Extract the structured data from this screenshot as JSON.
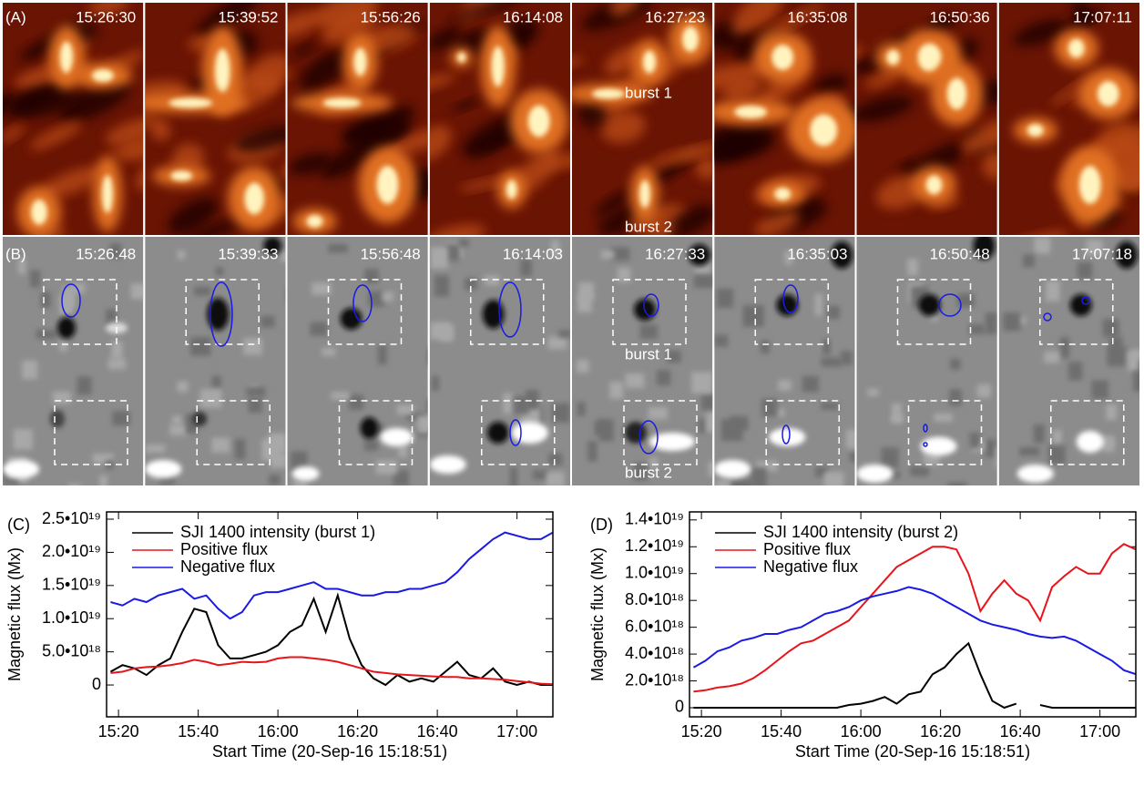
{
  "image_panels": {
    "a": {
      "label": "(A)",
      "times": [
        "15:26:30",
        "15:39:52",
        "15:56:26",
        "16:14:08",
        "16:27:23",
        "16:35:08",
        "16:50:36",
        "17:07:11"
      ],
      "burst_1": "burst 1",
      "burst_2": "burst 2"
    },
    "b": {
      "label": "(B)",
      "times": [
        "15:26:48",
        "15:39:33",
        "15:56:48",
        "16:14:03",
        "16:27:33",
        "16:35:03",
        "16:50:48",
        "17:07:18"
      ],
      "burst_1": "burst 1",
      "burst_2": "burst 2"
    }
  },
  "chart_data": [
    {
      "type": "line",
      "label": "(C)",
      "x_label": "Start Time (20-Sep-16 15:18:51)",
      "y_label": "Magnetic flux (Mx)",
      "x": [
        918,
        921,
        924,
        927,
        930,
        933,
        936,
        939,
        942,
        945,
        948,
        951,
        954,
        957,
        960,
        963,
        966,
        969,
        972,
        975,
        978,
        981,
        984,
        987,
        990,
        993,
        996,
        999,
        1002,
        1005,
        1008,
        1011,
        1014,
        1017,
        1020,
        1023,
        1026,
        1029
      ],
      "xlim": [
        917,
        1029
      ],
      "xticks": [
        {
          "value": 920,
          "label": "15:20"
        },
        {
          "value": 940,
          "label": "15:40"
        },
        {
          "value": 960,
          "label": "16:00"
        },
        {
          "value": 980,
          "label": "16:20"
        },
        {
          "value": 1000,
          "label": "16:40"
        },
        {
          "value": 1020,
          "label": "17:00"
        }
      ],
      "ylim": [
        -4.8e+18,
        2.61e+19
      ],
      "yticks": [
        0,
        {
          "value": 5e+18,
          "label": "5.0•10¹⁸"
        },
        {
          "value": 1e+19,
          "label": "1.0•10¹⁹"
        },
        {
          "value": 1.5e+19,
          "label": "1.5•10¹⁹"
        },
        {
          "value": 2e+19,
          "label": "2.0•10¹⁹"
        },
        {
          "value": 2.5e+19,
          "label": "2.5•10¹⁹"
        }
      ],
      "legend": "upper left",
      "series": [
        {
          "name": "SJI 1400 intensity (burst 1)",
          "color": "#000000",
          "values": [
            2e+18,
            3e+18,
            2.5e+18,
            1.5e+18,
            3e+18,
            4e+18,
            8e+18,
            1.15e+19,
            1.1e+19,
            6e+18,
            4e+18,
            4e+18,
            4.5e+18,
            5e+18,
            6e+18,
            8e+18,
            9e+18,
            1.3e+19,
            8e+18,
            1.35e+19,
            7e+18,
            3e+18,
            1e+18,
            0,
            1.5e+18,
            5e+17,
            1e+18,
            5e+17,
            2e+18,
            3.5e+18,
            1.5e+18,
            1e+18,
            2.5e+18,
            5e+17,
            0,
            5e+17,
            0,
            0
          ]
        },
        {
          "name": "Positive flux",
          "color": "#e8141c",
          "values": [
            1.8e+18,
            2e+18,
            2.5e+18,
            2.7e+18,
            2.8e+18,
            3e+18,
            3.3e+18,
            3.8e+18,
            3.5e+18,
            3e+18,
            3.2e+18,
            3.5e+18,
            3.4e+18,
            3.5e+18,
            4e+18,
            4.2e+18,
            4.2e+18,
            4e+18,
            3.8e+18,
            3.5e+18,
            3e+18,
            2.5e+18,
            2e+18,
            1.8e+18,
            1.6e+18,
            1.5e+18,
            1.4e+18,
            1.3e+18,
            1.2e+18,
            1.2e+18,
            1e+18,
            1e+18,
            9e+17,
            8e+17,
            6e+17,
            4e+17,
            2e+17,
            1e+17
          ]
        },
        {
          "name": "Negative flux",
          "color": "#1a1ae6",
          "values": [
            1.25e+19,
            1.2e+19,
            1.3e+19,
            1.25e+19,
            1.35e+19,
            1.4e+19,
            1.45e+19,
            1.3e+19,
            1.35e+19,
            1.15e+19,
            1e+19,
            1.1e+19,
            1.35e+19,
            1.4e+19,
            1.4e+19,
            1.45e+19,
            1.5e+19,
            1.55e+19,
            1.45e+19,
            1.45e+19,
            1.4e+19,
            1.35e+19,
            1.35e+19,
            1.4e+19,
            1.4e+19,
            1.45e+19,
            1.45e+19,
            1.5e+19,
            1.55e+19,
            1.7e+19,
            1.9e+19,
            2.05e+19,
            2.2e+19,
            2.3e+19,
            2.25e+19,
            2.2e+19,
            2.2e+19,
            2.3e+19
          ]
        }
      ]
    },
    {
      "type": "line",
      "label": "(D)",
      "x_label": "Start Time (20-Sep-16 15:18:51)",
      "y_label": "Magnetic flux (Mx)",
      "x": [
        918,
        921,
        924,
        927,
        930,
        933,
        936,
        939,
        942,
        945,
        948,
        951,
        954,
        957,
        960,
        963,
        966,
        969,
        972,
        975,
        978,
        981,
        984,
        987,
        990,
        993,
        996,
        999,
        1002,
        1005,
        1008,
        1011,
        1014,
        1017,
        1020,
        1023,
        1026,
        1029
      ],
      "xlim": [
        917,
        1029
      ],
      "xticks": [
        {
          "value": 920,
          "label": "15:20"
        },
        {
          "value": 940,
          "label": "15:40"
        },
        {
          "value": 960,
          "label": "16:00"
        },
        {
          "value": 980,
          "label": "16:20"
        },
        {
          "value": 1000,
          "label": "16:40"
        },
        {
          "value": 1020,
          "label": "17:00"
        }
      ],
      "ylim": [
        -6.8e+17,
        1.46e+19
      ],
      "yticks": [
        0,
        {
          "value": 2e+18,
          "label": "2.0•10¹⁸"
        },
        {
          "value": 4e+18,
          "label": "4.0•10¹⁸"
        },
        {
          "value": 6e+18,
          "label": "6.0•10¹⁸"
        },
        {
          "value": 8e+18,
          "label": "8.0•10¹⁸"
        },
        {
          "value": 1e+19,
          "label": "1.0•10¹⁹"
        },
        {
          "value": 1.2e+19,
          "label": "1.2•10¹⁹"
        },
        {
          "value": 1.4e+19,
          "label": "1.4•10¹⁹"
        }
      ],
      "legend": "upper left",
      "series": [
        {
          "name": "SJI 1400 intensity (burst 2)",
          "color": "#000000",
          "values": [
            0,
            0,
            0,
            0,
            0,
            0,
            0,
            0,
            0,
            0,
            0,
            0,
            0,
            2e+17,
            3e+17,
            5e+17,
            8e+17,
            3e+17,
            1e+18,
            1.2e+18,
            2.5e+18,
            3e+18,
            4e+18,
            4.8e+18,
            2.5e+18,
            5e+17,
            0,
            3e+17,
            null,
            2e+17,
            0,
            0,
            0,
            0,
            0,
            0,
            0,
            0
          ]
        },
        {
          "name": "Positive flux",
          "color": "#e8141c",
          "values": [
            1.2e+18,
            1.3e+18,
            1.5e+18,
            1.6e+18,
            1.8e+18,
            2.2e+18,
            2.8e+18,
            3.5e+18,
            4.2e+18,
            4.8e+18,
            5e+18,
            5.5e+18,
            6e+18,
            6.5e+18,
            7.5e+18,
            8.5e+18,
            9.5e+18,
            1.05e+19,
            1.1e+19,
            1.15e+19,
            1.2e+19,
            1.2e+19,
            1.18e+19,
            1e+19,
            7.2e+18,
            8.5e+18,
            9.5e+18,
            8.5e+18,
            8e+18,
            6.5e+18,
            9e+18,
            9.8e+18,
            1.05e+19,
            1e+19,
            1e+19,
            1.15e+19,
            1.22e+19,
            1.18e+19
          ]
        },
        {
          "name": "Negative flux",
          "color": "#1a1ae6",
          "values": [
            3e+18,
            3.5e+18,
            4.2e+18,
            4.5e+18,
            5e+18,
            5.2e+18,
            5.5e+18,
            5.5e+18,
            5.8e+18,
            6e+18,
            6.5e+18,
            7e+18,
            7.2e+18,
            7.5e+18,
            8e+18,
            8.3e+18,
            8.5e+18,
            8.7e+18,
            9e+18,
            8.8e+18,
            8.5e+18,
            8e+18,
            7.5e+18,
            7e+18,
            6.5e+18,
            6.2e+18,
            6e+18,
            5.8e+18,
            5.5e+18,
            5.3e+18,
            5.2e+18,
            5.3e+18,
            5e+18,
            4.5e+18,
            4e+18,
            3.5e+18,
            2.8e+18,
            2.5e+18
          ]
        }
      ]
    }
  ]
}
